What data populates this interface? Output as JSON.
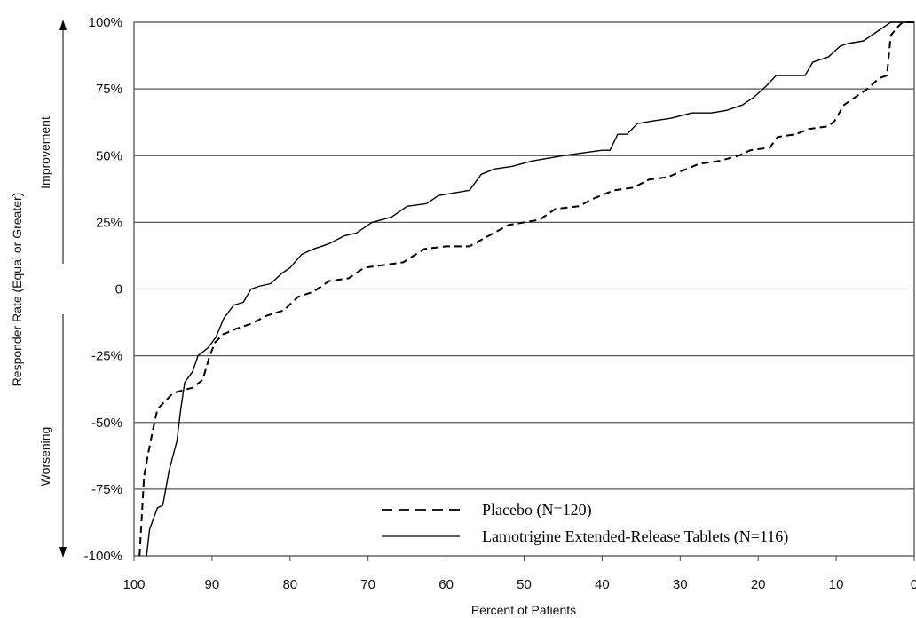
{
  "chart_data": {
    "type": "line",
    "xlabel": "Percent of Patients",
    "ylabel": "Responder Rate (Equal or Greater)",
    "improvement_label": "Improvement",
    "worsening_label": "Worsening",
    "xlim": [
      100,
      0
    ],
    "ylim": [
      -100,
      100
    ],
    "x_ticks": [
      100,
      90,
      80,
      70,
      60,
      50,
      40,
      30,
      20,
      10,
      0
    ],
    "y_ticks": [
      100,
      75,
      50,
      25,
      0,
      -25,
      -50,
      -75,
      -100
    ],
    "y_tick_labels": [
      "100%",
      "75%",
      "50%",
      "25%",
      "0",
      "-25%",
      "-50%",
      "-75%",
      "-100%"
    ],
    "grid": "horizontal",
    "legend_position": "bottom-right",
    "series": [
      {
        "name": "Placebo (N=120)",
        "style": "dashed",
        "color": "#000000",
        "points": [
          [
            99.3,
            -100
          ],
          [
            99,
            -85
          ],
          [
            98.7,
            -70
          ],
          [
            98.2,
            -62
          ],
          [
            97.6,
            -53
          ],
          [
            97,
            -45
          ],
          [
            96,
            -42
          ],
          [
            95,
            -39
          ],
          [
            93.8,
            -38
          ],
          [
            92.5,
            -37
          ],
          [
            91.2,
            -34
          ],
          [
            90.3,
            -25
          ],
          [
            89.6,
            -20
          ],
          [
            88.6,
            -17
          ],
          [
            87,
            -15
          ],
          [
            85,
            -13
          ],
          [
            83,
            -10
          ],
          [
            80.8,
            -8
          ],
          [
            79,
            -3
          ],
          [
            77,
            -1
          ],
          [
            75,
            3
          ],
          [
            72.5,
            4
          ],
          [
            70.5,
            8
          ],
          [
            68,
            9
          ],
          [
            65.5,
            10
          ],
          [
            62.8,
            15
          ],
          [
            60,
            16
          ],
          [
            57,
            16
          ],
          [
            54.5,
            20
          ],
          [
            52,
            24
          ],
          [
            50,
            25
          ],
          [
            48,
            26
          ],
          [
            46,
            30
          ],
          [
            43,
            31
          ],
          [
            41,
            34
          ],
          [
            38.5,
            37
          ],
          [
            36,
            38
          ],
          [
            34,
            41
          ],
          [
            31.5,
            42
          ],
          [
            30,
            44
          ],
          [
            27.5,
            47
          ],
          [
            25,
            48
          ],
          [
            22.5,
            50
          ],
          [
            21,
            52
          ],
          [
            18.5,
            53
          ],
          [
            17.5,
            57
          ],
          [
            15.2,
            58
          ],
          [
            13.5,
            60
          ],
          [
            11,
            61
          ],
          [
            10.2,
            63
          ],
          [
            9,
            69
          ],
          [
            7.5,
            72
          ],
          [
            6,
            75
          ],
          [
            4.5,
            79
          ],
          [
            3.5,
            80
          ],
          [
            3,
            95
          ],
          [
            2.2,
            98
          ],
          [
            1.5,
            100
          ],
          [
            0,
            100
          ]
        ]
      },
      {
        "name": "Lamotrigine Extended-Release Tablets (N=116)",
        "style": "solid",
        "color": "#000000",
        "points": [
          [
            98.4,
            -100
          ],
          [
            98,
            -90
          ],
          [
            97,
            -82
          ],
          [
            96.3,
            -81
          ],
          [
            95.5,
            -68
          ],
          [
            94.5,
            -57
          ],
          [
            94,
            -45
          ],
          [
            93.5,
            -35
          ],
          [
            92.5,
            -31
          ],
          [
            91.8,
            -25
          ],
          [
            90.5,
            -22
          ],
          [
            89.5,
            -18
          ],
          [
            88.5,
            -11
          ],
          [
            87.2,
            -6
          ],
          [
            86,
            -5
          ],
          [
            85,
            0
          ],
          [
            84,
            1
          ],
          [
            82.5,
            2
          ],
          [
            81,
            6
          ],
          [
            80,
            8
          ],
          [
            78.5,
            13
          ],
          [
            77,
            15
          ],
          [
            75,
            17
          ],
          [
            73,
            20
          ],
          [
            71.5,
            21
          ],
          [
            69.5,
            25
          ],
          [
            67,
            27
          ],
          [
            65,
            31
          ],
          [
            62.5,
            32
          ],
          [
            61,
            35
          ],
          [
            59,
            36
          ],
          [
            57,
            37
          ],
          [
            55.5,
            43
          ],
          [
            53.8,
            45
          ],
          [
            51.5,
            46
          ],
          [
            49,
            48
          ],
          [
            47,
            49
          ],
          [
            45,
            50
          ],
          [
            42.5,
            51
          ],
          [
            40,
            52
          ],
          [
            39,
            52
          ],
          [
            38,
            58
          ],
          [
            36.8,
            58
          ],
          [
            35.5,
            62
          ],
          [
            33.5,
            63
          ],
          [
            31.2,
            64
          ],
          [
            28.5,
            66
          ],
          [
            26,
            66
          ],
          [
            24,
            67
          ],
          [
            22,
            69
          ],
          [
            20.5,
            72
          ],
          [
            19,
            76
          ],
          [
            17.7,
            80
          ],
          [
            15.5,
            80
          ],
          [
            14,
            80
          ],
          [
            13,
            85
          ],
          [
            12,
            86
          ],
          [
            11,
            87
          ],
          [
            9.5,
            91
          ],
          [
            8.5,
            92
          ],
          [
            6.5,
            93
          ],
          [
            5,
            96
          ],
          [
            4,
            98
          ],
          [
            3,
            100
          ],
          [
            0,
            100
          ]
        ]
      }
    ]
  }
}
